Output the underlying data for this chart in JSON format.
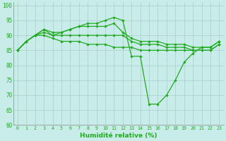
{
  "xlabel": "Humidité relative (%)",
  "background_color": "#c8ece8",
  "grid_color": "#aacccc",
  "line_color": "#22aa22",
  "xlim": [
    -0.5,
    23.5
  ],
  "ylim": [
    60,
    101
  ],
  "yticks": [
    60,
    65,
    70,
    75,
    80,
    85,
    90,
    95,
    100
  ],
  "xticks": [
    0,
    1,
    2,
    3,
    4,
    5,
    6,
    7,
    8,
    9,
    10,
    11,
    12,
    13,
    14,
    15,
    16,
    17,
    18,
    19,
    20,
    21,
    22,
    23
  ],
  "series": [
    [
      85,
      88,
      90,
      92,
      90,
      91,
      92,
      93,
      94,
      94,
      95,
      96,
      95,
      83,
      83,
      67,
      67,
      70,
      75,
      81,
      84,
      86,
      86,
      88
    ],
    [
      85,
      88,
      90,
      92,
      91,
      91,
      92,
      93,
      93,
      93,
      93,
      94,
      91,
      89,
      88,
      88,
      88,
      87,
      87,
      87,
      86,
      86,
      86,
      88
    ],
    [
      85,
      88,
      90,
      91,
      90,
      90,
      90,
      90,
      90,
      90,
      90,
      90,
      90,
      88,
      87,
      87,
      87,
      86,
      86,
      86,
      85,
      85,
      85,
      87
    ],
    [
      85,
      88,
      90,
      90,
      89,
      88,
      88,
      88,
      87,
      87,
      87,
      86,
      86,
      86,
      85,
      85,
      85,
      85,
      85,
      85,
      85,
      85,
      85,
      87
    ]
  ]
}
